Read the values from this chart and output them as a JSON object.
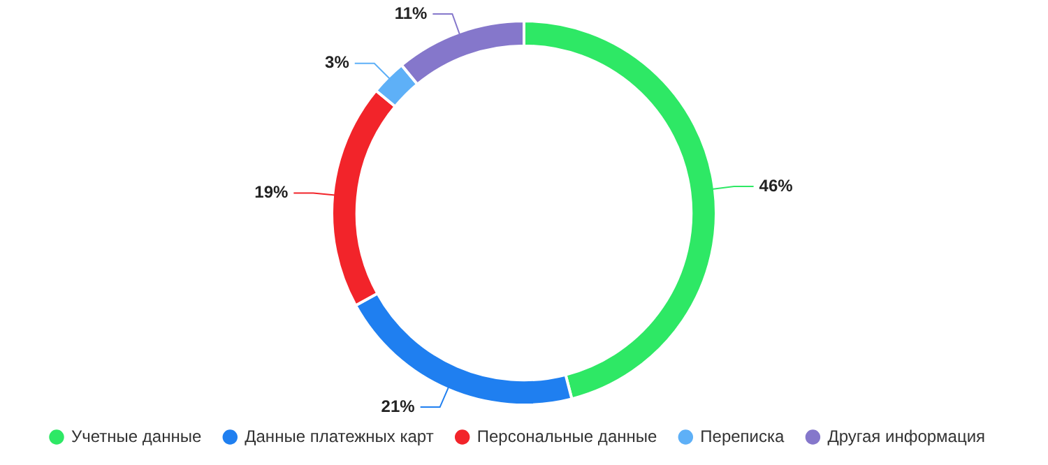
{
  "chart_data": {
    "type": "donut",
    "categories": [
      "Учетные данные",
      "Данные платежных карт",
      "Персональные данные",
      "Переписка",
      "Другая информация"
    ],
    "values": [
      46,
      21,
      19,
      3,
      11
    ],
    "colors": [
      "#2ee865",
      "#1f7ff0",
      "#f2242a",
      "#5eb0f7",
      "#8577cb"
    ],
    "value_labels": [
      "46%",
      "21%",
      "19%",
      "3%",
      "11%"
    ],
    "legend": "bottom left"
  }
}
